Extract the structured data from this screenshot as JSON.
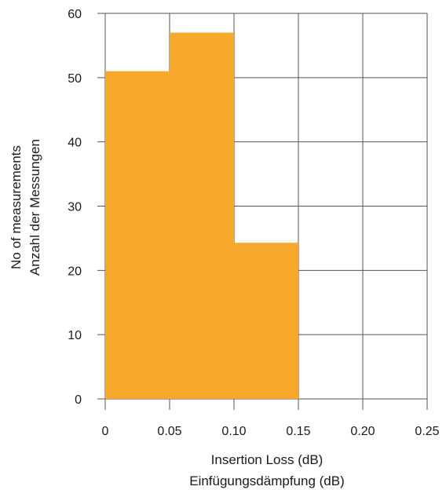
{
  "chart_data": {
    "type": "bar",
    "subtype": "histogram",
    "bins": [
      {
        "x0": 0.0,
        "x1": 0.05,
        "value": 51
      },
      {
        "x0": 0.05,
        "x1": 0.1,
        "value": 57
      },
      {
        "x0": 0.1,
        "x1": 0.15,
        "value": 24.3
      }
    ],
    "xlabel": [
      "Insertion Loss (dB)",
      "Einfügungsdämpfung (dB)"
    ],
    "ylabel": [
      "No of measurements",
      "Anzahl der Messungen"
    ],
    "xlim": [
      0,
      0.25
    ],
    "ylim": [
      0,
      60
    ],
    "xticks": [
      0,
      0.05,
      0.1,
      0.15,
      0.2,
      0.25
    ],
    "xtick_labels": [
      "0",
      "0.05",
      "0.10",
      "0.15",
      "0.20",
      "0.25"
    ],
    "yticks": [
      0,
      10,
      20,
      30,
      40,
      50,
      60
    ],
    "ytick_labels": [
      "0",
      "10",
      "20",
      "30",
      "40",
      "50",
      "60"
    ],
    "grid": true,
    "bar_color": "#F6A82C",
    "grid_color": "#555555"
  }
}
